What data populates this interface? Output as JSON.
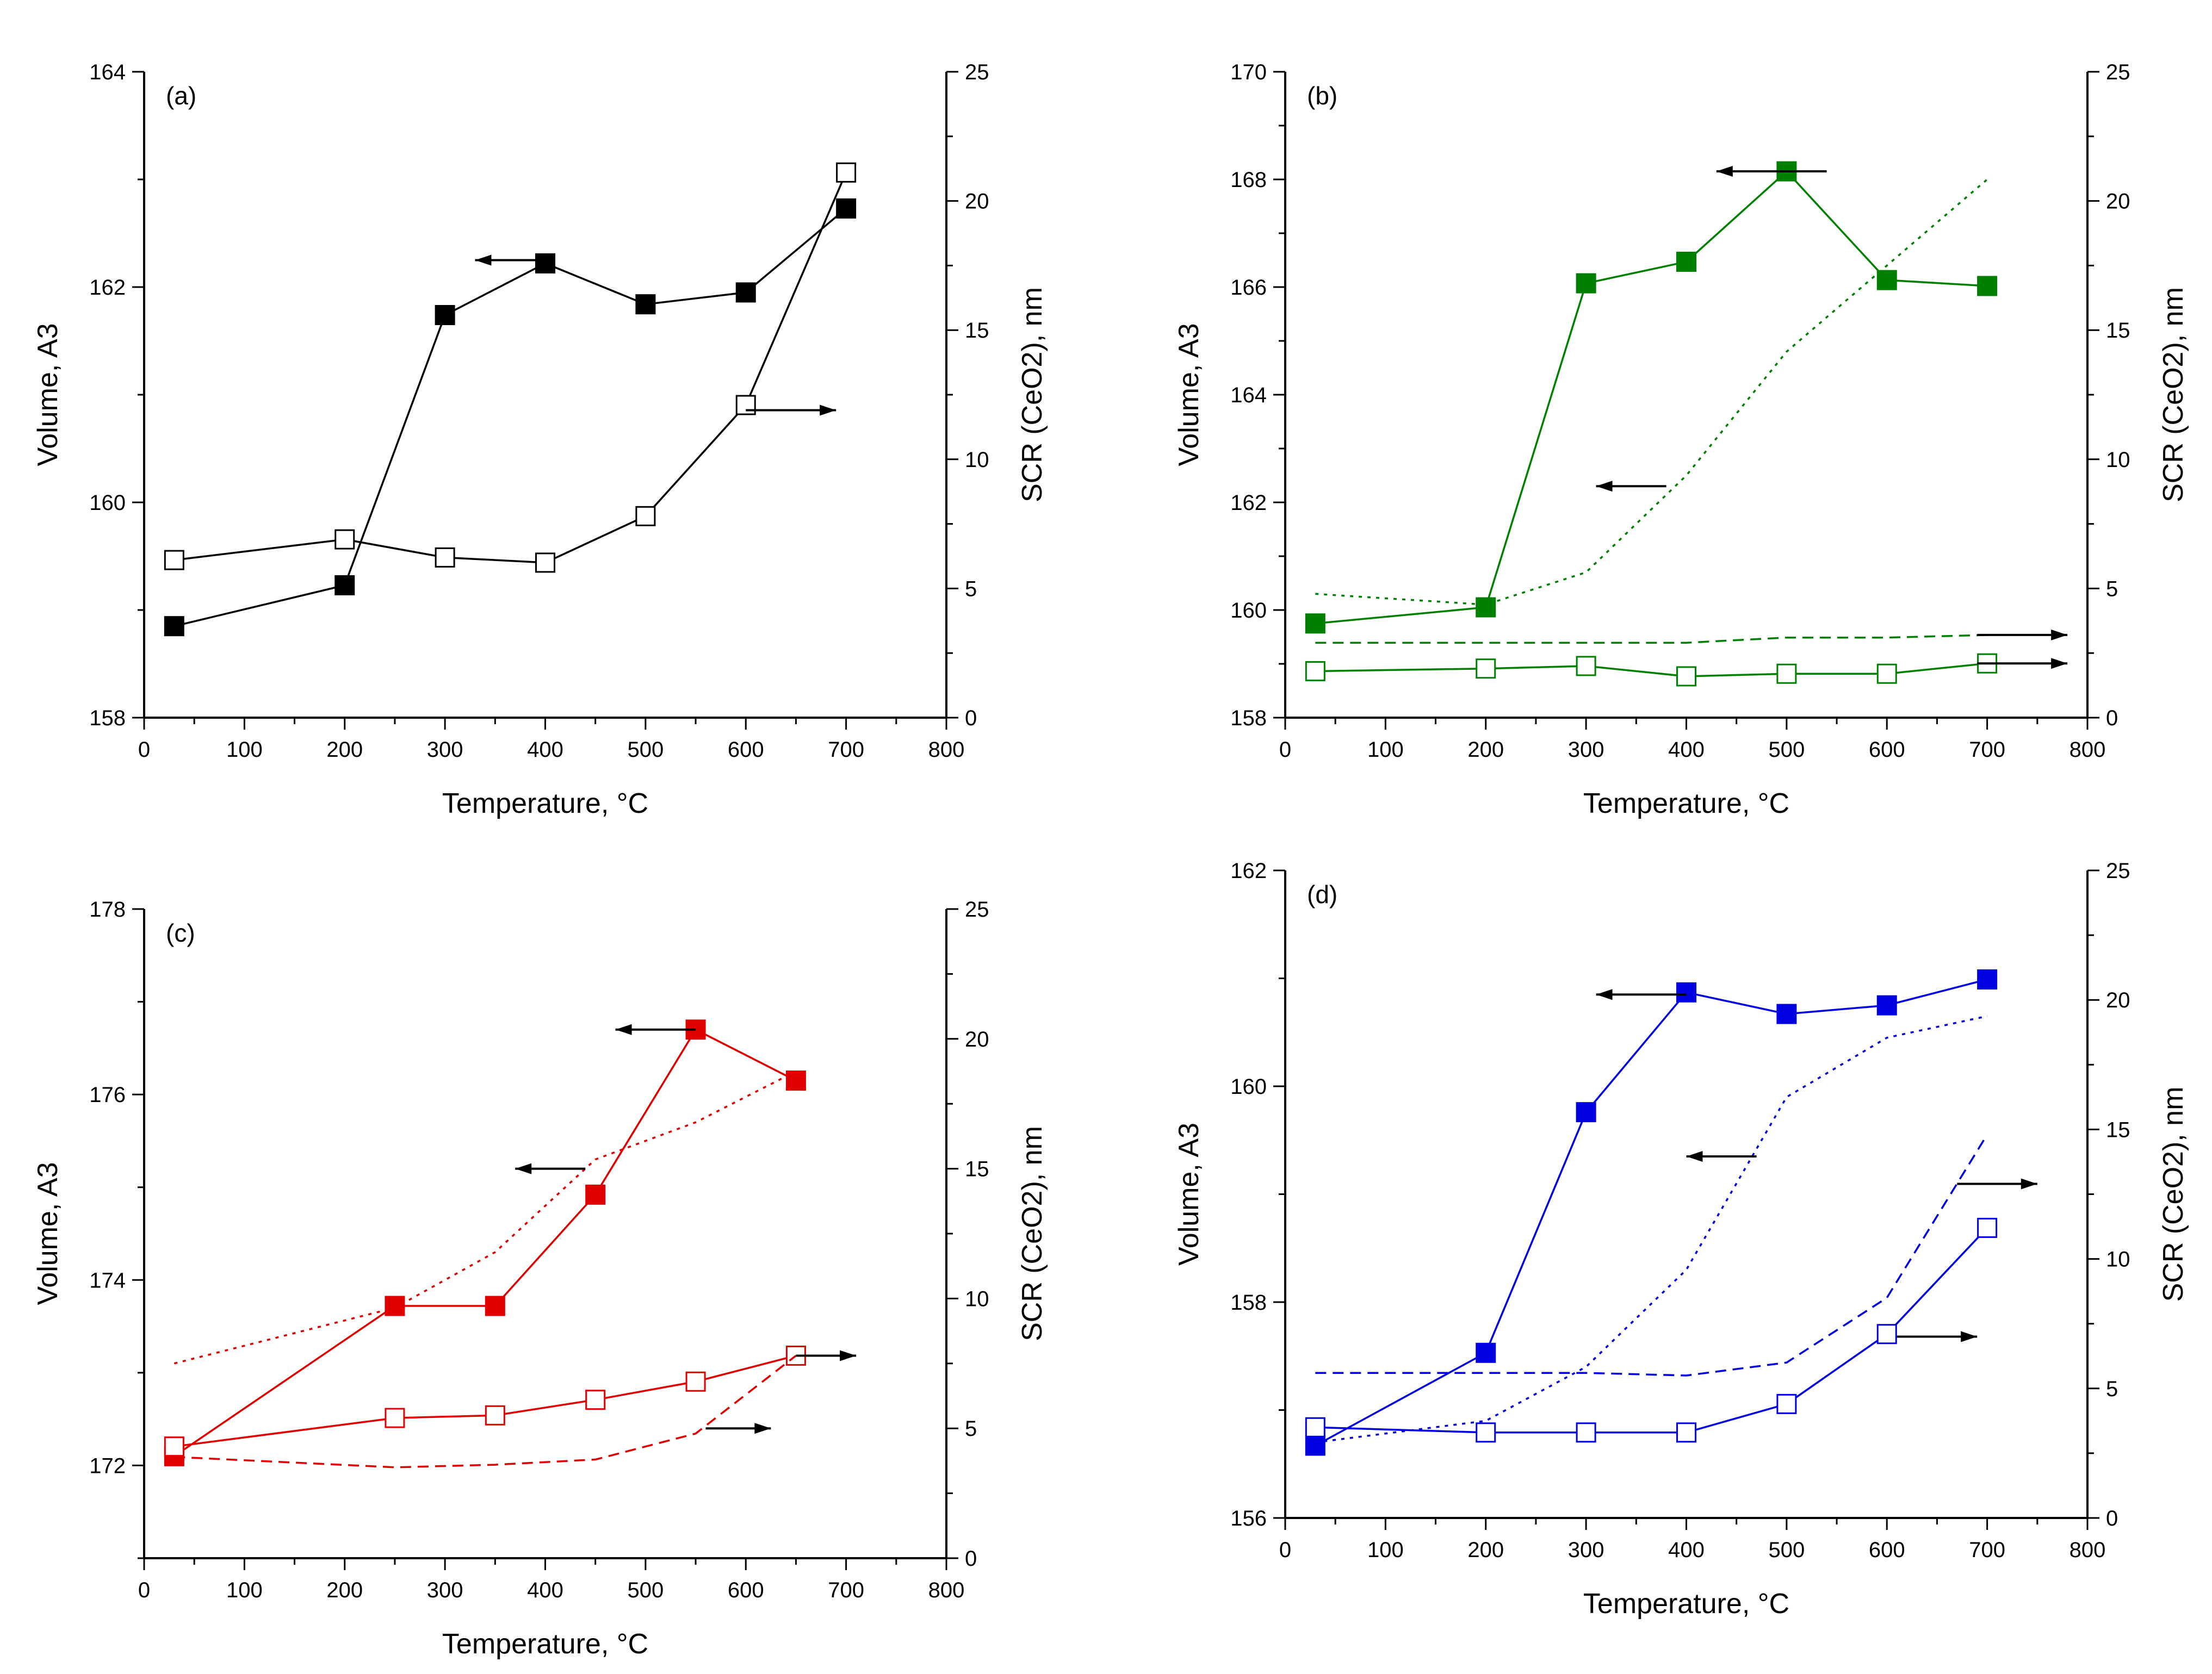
{
  "chart_data": [
    {
      "panel": "(a)",
      "type": "line",
      "xlabel": "Temperature, °C",
      "ylabel": "Volume, A3",
      "y2label": "SCR (CeO2), nm",
      "xlim": [
        0,
        800
      ],
      "ylim": [
        158,
        164
      ],
      "y2lim": [
        0,
        25
      ],
      "xticks": [
        0,
        100,
        200,
        300,
        400,
        500,
        600,
        700,
        800
      ],
      "yticks": [
        158,
        160,
        162,
        164
      ],
      "y2ticks": [
        0,
        5,
        10,
        15,
        20,
        25
      ],
      "color": "#000000",
      "series": [
        {
          "axis": "left",
          "marker": "filled-square",
          "line": "solid",
          "x": [
            30,
            200,
            300,
            400,
            500,
            600,
            700
          ],
          "y": [
            158.85,
            159.23,
            161.74,
            162.22,
            161.84,
            161.95,
            162.73
          ]
        },
        {
          "axis": "right",
          "marker": "open-square",
          "line": "solid",
          "x": [
            30,
            200,
            300,
            400,
            500,
            600,
            700
          ],
          "y": [
            6.1,
            6.9,
            6.2,
            6.0,
            7.8,
            12.1,
            21.1
          ]
        }
      ],
      "arrows": [
        {
          "direction": "left",
          "from": [
            400,
            162.25
          ],
          "to": [
            330,
            162.25
          ],
          "axis": "left"
        },
        {
          "direction": "right",
          "from": [
            600,
            11.9
          ],
          "to": [
            690,
            11.9
          ],
          "axis": "right"
        }
      ]
    },
    {
      "panel": "(b)",
      "type": "line",
      "xlabel": "Temperature, °C",
      "ylabel": "Volume, A3",
      "y2label": "SCR (CeO2), nm",
      "xlim": [
        0,
        800
      ],
      "ylim": [
        158,
        170
      ],
      "y2lim": [
        0,
        25
      ],
      "xticks": [
        0,
        100,
        200,
        300,
        400,
        500,
        600,
        700,
        800
      ],
      "yticks": [
        158,
        160,
        162,
        164,
        166,
        168,
        170
      ],
      "y2ticks": [
        0,
        5,
        10,
        15,
        20,
        25
      ],
      "color": "#008000",
      "series": [
        {
          "axis": "left",
          "marker": "filled-square",
          "line": "solid",
          "x": [
            30,
            200,
            300,
            400,
            500,
            600,
            700
          ],
          "y": [
            159.75,
            160.05,
            166.07,
            166.47,
            168.15,
            166.13,
            166.02
          ]
        },
        {
          "axis": "right",
          "marker": "open-square",
          "line": "solid",
          "x": [
            30,
            200,
            300,
            400,
            500,
            600,
            700
          ],
          "y": [
            1.8,
            1.9,
            2.0,
            1.6,
            1.7,
            1.7,
            2.1
          ]
        },
        {
          "axis": "left",
          "marker": "none",
          "line": "dotted",
          "x": [
            30,
            200,
            300,
            400,
            500,
            600,
            700
          ],
          "y": [
            160.3,
            160.1,
            160.7,
            162.5,
            164.8,
            166.4,
            168.0
          ]
        },
        {
          "axis": "right",
          "marker": "none",
          "line": "dashed",
          "x": [
            30,
            200,
            300,
            400,
            500,
            600,
            700
          ],
          "y": [
            2.9,
            2.9,
            2.9,
            2.9,
            3.1,
            3.1,
            3.2
          ]
        }
      ],
      "arrows": [
        {
          "direction": "left",
          "from": [
            540,
            168.15
          ],
          "to": [
            430,
            168.15
          ],
          "axis": "left"
        },
        {
          "direction": "left",
          "from": [
            380,
            162.3
          ],
          "to": [
            310,
            162.3
          ],
          "axis": "left"
        },
        {
          "direction": "right",
          "from": [
            690,
            3.2
          ],
          "to": [
            780,
            3.2
          ],
          "axis": "right"
        },
        {
          "direction": "right",
          "from": [
            690,
            2.1
          ],
          "to": [
            780,
            2.1
          ],
          "axis": "right"
        }
      ]
    },
    {
      "panel": "(c)",
      "type": "line",
      "xlabel": "Temperature, °C",
      "ylabel": "Volume, A3",
      "y2label": "SCR (CeO2), nm",
      "xlim": [
        0,
        800
      ],
      "ylim": [
        171,
        178
      ],
      "y2lim": [
        0,
        25
      ],
      "xticks": [
        0,
        100,
        200,
        300,
        400,
        500,
        600,
        700,
        800
      ],
      "yticks": [
        172,
        174,
        176,
        178
      ],
      "y2ticks": [
        0,
        5,
        10,
        15,
        20,
        25
      ],
      "color": "#e00000",
      "series": [
        {
          "axis": "left",
          "marker": "filled-square",
          "line": "solid",
          "x": [
            30,
            250,
            350,
            450,
            550,
            650
          ],
          "y": [
            172.1,
            173.72,
            173.72,
            174.92,
            176.7,
            176.15
          ]
        },
        {
          "axis": "right",
          "marker": "open-square",
          "line": "solid",
          "x": [
            30,
            250,
            350,
            450,
            550,
            650
          ],
          "y": [
            4.3,
            5.4,
            5.5,
            6.1,
            6.8,
            7.8
          ]
        },
        {
          "axis": "left",
          "marker": "none",
          "line": "dotted",
          "x": [
            30,
            250,
            350,
            450,
            550,
            650
          ],
          "y": [
            173.1,
            173.7,
            174.3,
            175.3,
            175.7,
            176.25
          ]
        },
        {
          "axis": "right",
          "marker": "none",
          "line": "dashed",
          "x": [
            30,
            250,
            350,
            450,
            550,
            650
          ],
          "y": [
            3.9,
            3.5,
            3.6,
            3.8,
            4.8,
            7.8
          ]
        }
      ],
      "arrows": [
        {
          "direction": "left",
          "from": [
            550,
            176.7
          ],
          "to": [
            470,
            176.7
          ],
          "axis": "left"
        },
        {
          "direction": "left",
          "from": [
            440,
            175.2
          ],
          "to": [
            370,
            175.2
          ],
          "axis": "left"
        },
        {
          "direction": "right",
          "from": [
            650,
            7.8
          ],
          "to": [
            710,
            7.8
          ],
          "axis": "right"
        },
        {
          "direction": "right",
          "from": [
            560,
            5.0
          ],
          "to": [
            625,
            5.0
          ],
          "axis": "right"
        }
      ]
    },
    {
      "panel": "(d)",
      "type": "line",
      "xlabel": "Temperature, °C",
      "ylabel": "Volume, A3",
      "y2label": "SCR (CeO2), nm",
      "xlim": [
        0,
        800
      ],
      "ylim": [
        156,
        162
      ],
      "y2lim": [
        0,
        25
      ],
      "xticks": [
        0,
        100,
        200,
        300,
        400,
        500,
        600,
        700,
        800
      ],
      "yticks": [
        156,
        158,
        160,
        162
      ],
      "y2ticks": [
        0,
        5,
        10,
        15,
        20,
        25
      ],
      "color": "#0000e0",
      "series": [
        {
          "axis": "left",
          "marker": "filled-square",
          "line": "solid",
          "x": [
            30,
            200,
            300,
            400,
            500,
            600,
            700
          ],
          "y": [
            156.67,
            157.53,
            159.76,
            160.87,
            160.67,
            160.75,
            160.99
          ]
        },
        {
          "axis": "right",
          "marker": "open-square",
          "line": "solid",
          "x": [
            30,
            200,
            300,
            400,
            500,
            600,
            700
          ],
          "y": [
            3.5,
            3.3,
            3.3,
            3.3,
            4.4,
            7.1,
            11.2
          ]
        },
        {
          "axis": "left",
          "marker": "none",
          "line": "dotted",
          "x": [
            30,
            200,
            300,
            400,
            500,
            600,
            700
          ],
          "y": [
            156.7,
            156.9,
            157.4,
            158.3,
            159.9,
            160.45,
            160.65
          ]
        },
        {
          "axis": "right",
          "marker": "none",
          "line": "dashed",
          "x": [
            30,
            200,
            300,
            400,
            500,
            600,
            700
          ],
          "y": [
            5.6,
            5.6,
            5.6,
            5.5,
            6.0,
            8.5,
            14.8
          ]
        }
      ],
      "arrows": [
        {
          "direction": "left",
          "from": [
            400,
            160.85
          ],
          "to": [
            310,
            160.85
          ],
          "axis": "left"
        },
        {
          "direction": "left",
          "from": [
            470,
            159.35
          ],
          "to": [
            400,
            159.35
          ],
          "axis": "left"
        },
        {
          "direction": "right",
          "from": [
            670,
            12.9
          ],
          "to": [
            750,
            12.9
          ],
          "axis": "right"
        },
        {
          "direction": "right",
          "from": [
            610,
            7.0
          ],
          "to": [
            690,
            7.0
          ],
          "axis": "right"
        }
      ]
    }
  ]
}
